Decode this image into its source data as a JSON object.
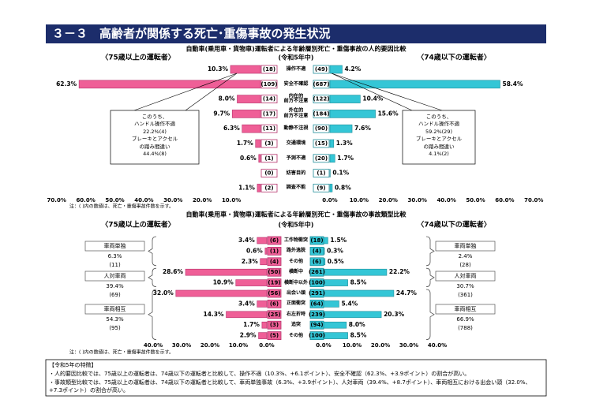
{
  "title": "３－３　高齢者が関係する死亡･重傷事故の発生状況",
  "chart_data": [
    {
      "type": "butterfly_bar",
      "title": "自動車(乗用車・貨物車)運転者による年齢層別死亡・重傷事故の人的要因比較",
      "subtitle": "(令和5年中)",
      "categories": [
        "操作不適",
        "安全不確認",
        "内在的\n前方不注意",
        "外在的\n前方不注意",
        "動静不注視",
        "交通環境",
        "予測不適",
        "妨害目的",
        "調査不能"
      ],
      "series": [
        {
          "name": "〈75歳以上の運転者〉",
          "color": "#ef5f97",
          "values": [
            10.3,
            62.3,
            8.0,
            9.7,
            6.3,
            1.7,
            0.6,
            0,
            1.1
          ],
          "value_labels": [
            "10.3%",
            "62.3%",
            "8.0%",
            "9.7%",
            "6.3%",
            "1.7%",
            "0.6%",
            null,
            "1.1%"
          ],
          "count_labels": [
            "(18)",
            "(109)",
            "(14)",
            "(17)",
            "(11)",
            "(3)",
            "(1)",
            "(0)",
            "(2)"
          ]
        },
        {
          "name": "〈74歳以下の運転者〉",
          "color": "#34c6d6",
          "values": [
            4.2,
            58.4,
            10.4,
            15.6,
            7.6,
            1.3,
            1.7,
            0.1,
            0.8
          ],
          "value_labels": [
            "4.2%",
            "58.4%",
            "10.4%",
            "15.6%",
            "7.6%",
            "1.3%",
            "1.7%",
            "0.1%",
            "0.8%"
          ],
          "count_labels": [
            "(49)",
            "(687)",
            "(122)",
            "(184)",
            "(90)",
            "(15)",
            "(20)",
            "(1)",
            "(9)"
          ]
        }
      ],
      "xlim": [
        0,
        70
      ],
      "xticks_left": [
        {
          "value": 70,
          "label": "70.0%"
        },
        {
          "value": 60,
          "label": "60.0%"
        },
        {
          "value": 50,
          "label": "50.0%"
        },
        {
          "value": 40,
          "label": "40.0%"
        },
        {
          "value": 30,
          "label": "30.0%"
        },
        {
          "value": 20,
          "label": "20.0%"
        },
        {
          "value": 10,
          "label": "10.0%"
        }
      ],
      "xticks_right": [
        {
          "value": 0,
          "label": "0.0%"
        },
        {
          "value": 10,
          "label": "10.0%"
        },
        {
          "value": 20,
          "label": "20.0%"
        },
        {
          "value": 30,
          "label": "30.0%"
        },
        {
          "value": 40,
          "label": "40.0%"
        },
        {
          "value": 50,
          "label": "50.0%"
        },
        {
          "value": 60,
          "label": "60.0%"
        },
        {
          "value": 70,
          "label": "70.0%"
        }
      ],
      "callouts": [
        "このうち、\nハンドル操作不適\n22.2%(4)\nブレーキとアクセル\nの踏み間違い\n44.4%(8)",
        "このうち、\nハンドル操作不適\n59.2%(29)\nブレーキとアクセル\nの踏み間違い\n4.1%(2)"
      ],
      "note": "注：( )内の数値は、死亡・重傷事故件数を示す。"
    },
    {
      "type": "butterfly_bar",
      "title": "自動車(乗用車・貨物車)運転者による年齢層別死亡・重傷事故の事故類型比較",
      "subtitle": "(令和5年中)",
      "categories": [
        "工作物衝突",
        "路外逸脱",
        "その他",
        "横断中",
        "横断中以外",
        "出会い頭",
        "正面衝突",
        "右左折時",
        "追突",
        "その他"
      ],
      "series": [
        {
          "name": "〈75歳以上の運転者〉",
          "color": "#ef5f97",
          "values": [
            3.4,
            0.6,
            2.3,
            28.6,
            10.9,
            32.0,
            3.4,
            14.3,
            1.7,
            2.9
          ],
          "value_labels": [
            "3.4%",
            "0.6%",
            "2.3%",
            "28.6%",
            "10.9%",
            "32.0%",
            "3.4%",
            "14.3%",
            "1.7%",
            "2.9%"
          ],
          "count_labels": [
            "(6)",
            "(1)",
            "(4)",
            "(50)",
            "(19)",
            "(56)",
            "(6)",
            "(25)",
            "(3)",
            "(5)"
          ]
        },
        {
          "name": "〈74歳以下の運転者〉",
          "color": "#34c6d6",
          "values": [
            1.5,
            0.3,
            0.5,
            22.2,
            8.5,
            24.7,
            5.4,
            20.3,
            8.0,
            8.5
          ],
          "value_labels": [
            "1.5%",
            "0.3%",
            "0.5%",
            "22.2%",
            "8.5%",
            "24.7%",
            "5.4%",
            "20.3%",
            "8.0%",
            "8.5%"
          ],
          "count_labels": [
            "(18)",
            "(4)",
            "(6)",
            "(261)",
            "(100)",
            "(291)",
            "(64)",
            "(239)",
            "(94)",
            "(100)"
          ]
        }
      ],
      "xlim": [
        0,
        40
      ],
      "xticks_left": [
        {
          "value": 40,
          "label": "40.0%"
        },
        {
          "value": 30,
          "label": "30.0%"
        },
        {
          "value": 20,
          "label": "20.0%"
        },
        {
          "value": 10,
          "label": "10.0%"
        },
        {
          "value": 0,
          "label": "0.0%"
        }
      ],
      "xticks_right": [
        {
          "value": 0,
          "label": "0.0%"
        },
        {
          "value": 10,
          "label": "10.0%"
        },
        {
          "value": 20,
          "label": "20.0%"
        },
        {
          "value": 30,
          "label": "30.0%"
        },
        {
          "value": 40,
          "label": "40.0%"
        }
      ],
      "groups": [
        [
          {
            "name": "車両単独",
            "share": "6.3%",
            "count": "(11)"
          },
          {
            "name": "人対車両",
            "share": "39.4%",
            "count": "(69)"
          },
          {
            "name": "車両相互",
            "share": "54.3%",
            "count": "(95)"
          }
        ],
        [
          {
            "name": "車両単独",
            "share": "2.4%",
            "count": "(28)"
          },
          {
            "name": "人対車両",
            "share": "30.7%",
            "count": "(361)"
          },
          {
            "name": "車両相互",
            "share": "66.9%",
            "count": "(788)"
          }
        ]
      ],
      "note": "注：( )内の数値は、死亡・重傷事故件数を示す。"
    }
  ],
  "summary": {
    "heading": "【令和5年の特徴】",
    "lines": [
      "・人的要因比較では、75歳以上の運転者は、74歳以下の運転者と比較して、操作不適（10.3%、+6.1ポイント）、安全不確認（62.3%、+3.9ポイント）の割合が高い。",
      "・事故類型比較では、75歳以上の運転者は、74歳以下の運転者と比較して、車両単独事故（6.3%、+3.9ポイント）、人対車両（39.4%、+8.7ポイント）、車両相互における出会い頭（32.0%、+7.3ポイント）の割合が高い。"
    ]
  }
}
